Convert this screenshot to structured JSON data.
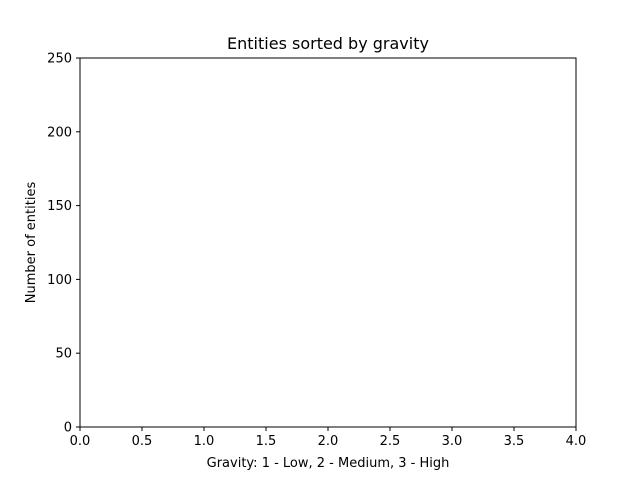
{
  "chart_data": {
    "type": "bar",
    "title": "Entities sorted by gravity",
    "xlabel": "Gravity: 1 - Low, 2 - Medium, 3 - High",
    "ylabel": "Number of entities",
    "xlim": [
      0.0,
      4.0
    ],
    "ylim": [
      0,
      250
    ],
    "x_ticks": [
      "0.0",
      "0.5",
      "1.0",
      "1.5",
      "2.0",
      "2.5",
      "3.0",
      "3.5",
      "4.0"
    ],
    "y_ticks": [
      "0",
      "50",
      "100",
      "150",
      "200",
      "250"
    ],
    "categories": [],
    "values": [],
    "grid": false,
    "legend": "none"
  }
}
